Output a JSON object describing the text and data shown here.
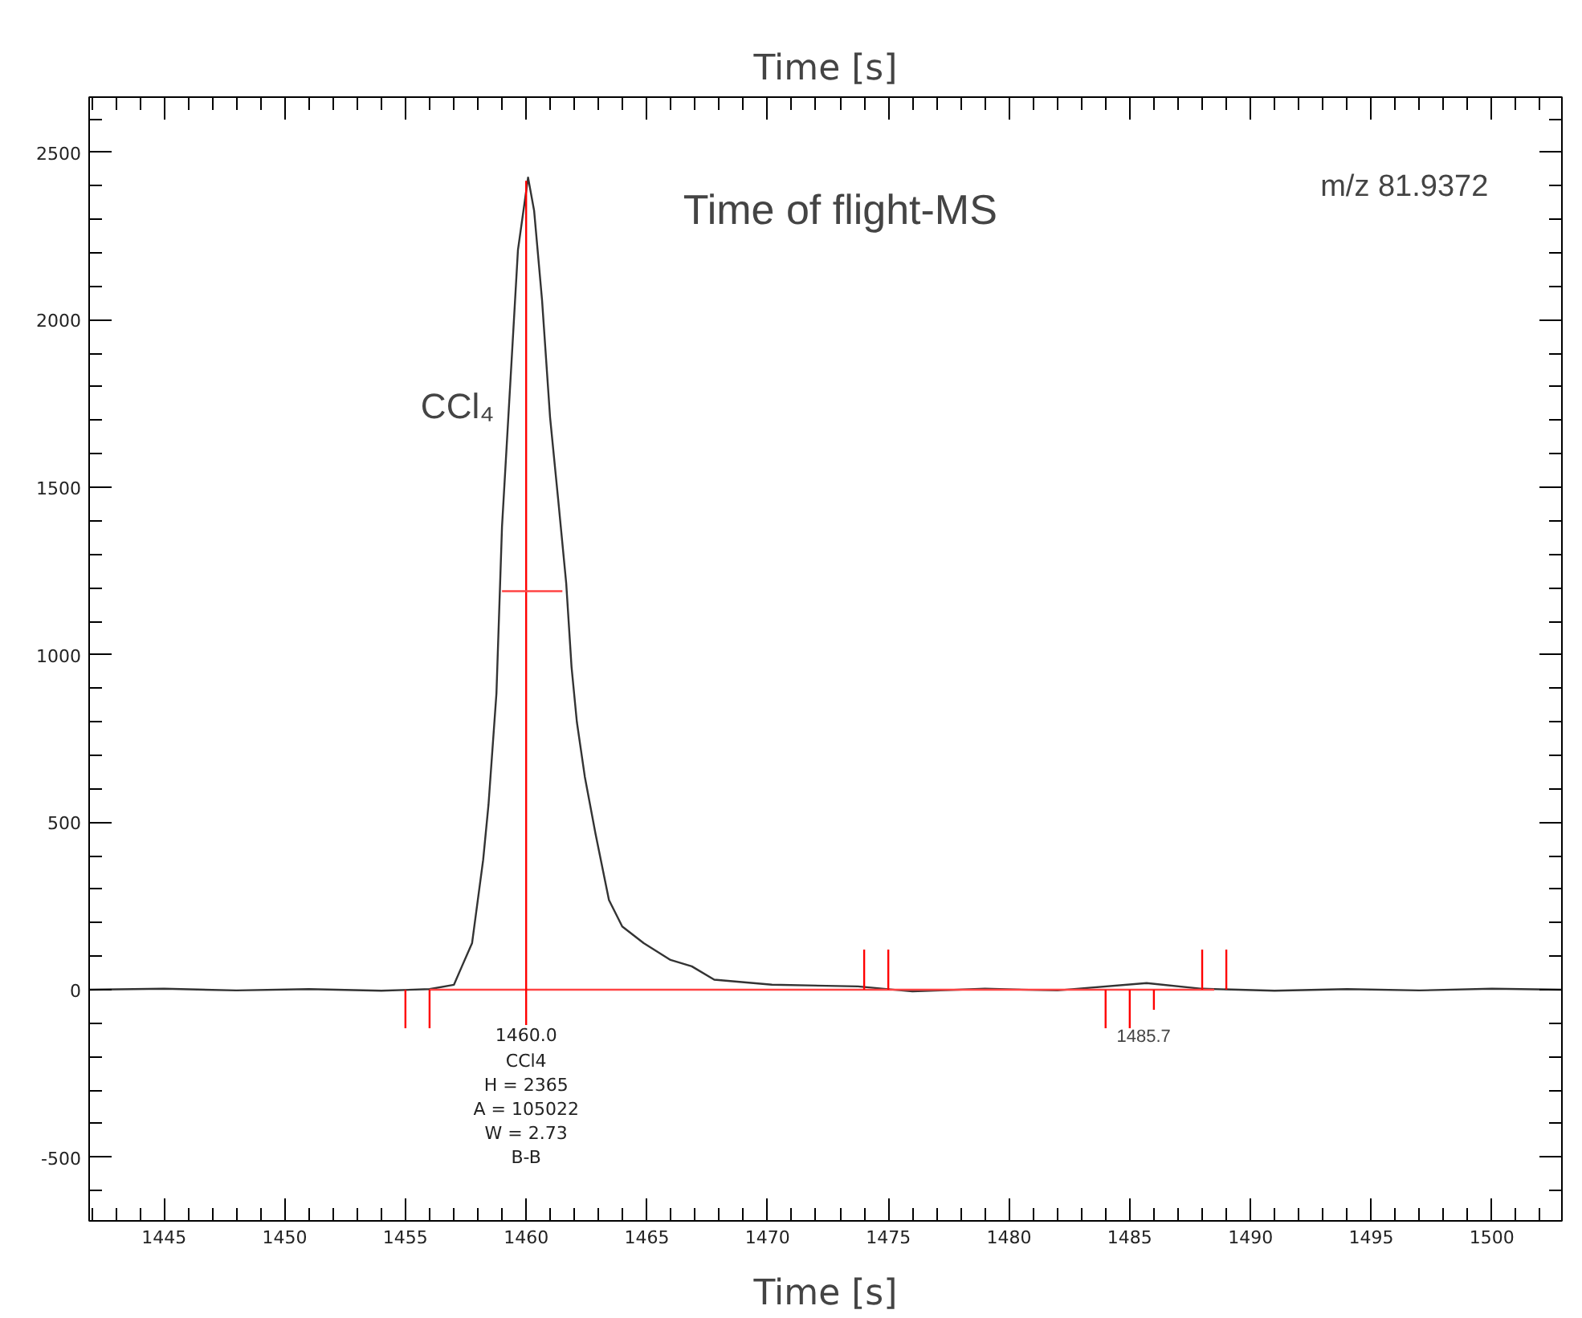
{
  "chart_data": {
    "type": "line",
    "title": "Time [s]",
    "xlabel": "Time [s]",
    "xlim": [
      1441.9,
      1502.9
    ],
    "ylim": [
      -690,
      2665
    ],
    "xticks": [
      1445,
      1450,
      1455,
      1460,
      1465,
      1470,
      1475,
      1480,
      1485,
      1490,
      1495,
      1500
    ],
    "yticks": [
      -500,
      0,
      500,
      1000,
      1500,
      2000,
      2500
    ],
    "grid": false,
    "marker": "none",
    "line_style": "solid",
    "annotations": [
      "Time of flight-MS",
      "m/z 81.9372",
      "CCl₄",
      {
        "text": "1460.0\nCCl4\nH = 2365\nA = 105022\nW = 2.73\nB-B",
        "x": 1460.0,
        "y": -110
      },
      "1485.7"
    ],
    "series": [
      {
        "color": "#333333",
        "x": [
          1441.9,
          1445,
          1448,
          1451,
          1454,
          1456,
          1457.01,
          1457.34,
          1457.76,
          1458.22,
          1458.44,
          1458.77,
          1459.0,
          1459.33,
          1459.66,
          1460.08,
          1460.33,
          1460.66,
          1460.99,
          1461.33,
          1461.66,
          1461.88,
          1462.1,
          1462.43,
          1462.87,
          1463.43,
          1463.98,
          1464.87,
          1465.98,
          1466.86,
          1467.79,
          1470.18,
          1473.74,
          1476,
          1479,
          1482,
          1485.7,
          1488,
          1491,
          1494,
          1497,
          1500,
          1502.9
        ],
        "values": [
          0,
          3,
          -2,
          2,
          -3,
          2,
          15,
          70,
          139,
          388,
          552,
          885,
          1382,
          1794,
          2208,
          2425,
          2326,
          2058,
          1710,
          1461,
          1213,
          964,
          800,
          636,
          467,
          268,
          189,
          139,
          89,
          70,
          30,
          15,
          10,
          -5,
          3,
          -2,
          20,
          3,
          -3,
          2,
          -2,
          3,
          0
        ]
      },
      {
        "color": "#ff4444",
        "x": [
          1456,
          1488.5
        ],
        "values": [
          0,
          0
        ]
      },
      {
        "color": "#ff0000",
        "x": [
          1460.0,
          1460.0
        ],
        "values": [
          -105,
          2415
        ]
      },
      {
        "color": "#ff4444",
        "x": [
          1459,
          1461.5
        ],
        "values": [
          1190,
          1190
        ]
      },
      {
        "color": "#ff0000",
        "x": [
          1455,
          1455,
          null,
          1456,
          1456,
          null,
          1474,
          1474,
          null,
          1475,
          1475,
          null,
          1484,
          1484,
          null,
          1485,
          1485,
          null,
          1486,
          1486,
          null,
          1488,
          1488,
          null,
          1489,
          1489
        ],
        "values": [
          0,
          -115,
          null,
          0,
          -115,
          null,
          0,
          120,
          null,
          0,
          120,
          null,
          0,
          -115,
          null,
          0,
          -115,
          null,
          0,
          -60,
          null,
          0,
          120,
          null,
          0,
          120
        ]
      }
    ]
  }
}
